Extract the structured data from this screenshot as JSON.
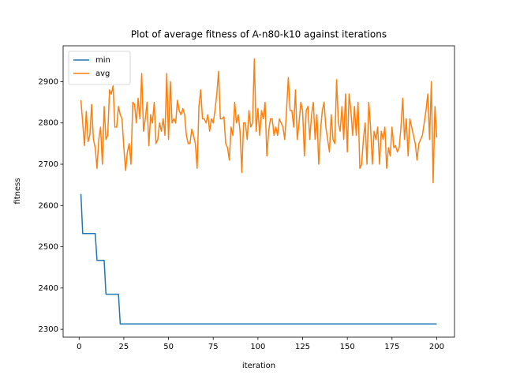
{
  "chart_data": {
    "type": "line",
    "title": "Plot of average fitness of A-n80-k10 against iterations",
    "xlabel": "iteration",
    "ylabel": "fitness",
    "x": [
      1,
      2,
      3,
      4,
      5,
      6,
      7,
      8,
      9,
      10,
      11,
      12,
      13,
      14,
      15,
      16,
      17,
      18,
      19,
      20,
      21,
      22,
      23,
      24,
      25,
      26,
      27,
      28,
      29,
      30,
      31,
      32,
      33,
      34,
      35,
      36,
      37,
      38,
      39,
      40,
      41,
      42,
      43,
      44,
      45,
      46,
      47,
      48,
      49,
      50,
      51,
      52,
      53,
      54,
      55,
      56,
      57,
      58,
      59,
      60,
      61,
      62,
      63,
      64,
      65,
      66,
      67,
      68,
      69,
      70,
      71,
      72,
      73,
      74,
      75,
      76,
      77,
      78,
      79,
      80,
      81,
      82,
      83,
      84,
      85,
      86,
      87,
      88,
      89,
      90,
      91,
      92,
      93,
      94,
      95,
      96,
      97,
      98,
      99,
      100,
      101,
      102,
      103,
      104,
      105,
      106,
      107,
      108,
      109,
      110,
      111,
      112,
      113,
      114,
      115,
      116,
      117,
      118,
      119,
      120,
      121,
      122,
      123,
      124,
      125,
      126,
      127,
      128,
      129,
      130,
      131,
      132,
      133,
      134,
      135,
      136,
      137,
      138,
      139,
      140,
      141,
      142,
      143,
      144,
      145,
      146,
      147,
      148,
      149,
      150,
      151,
      152,
      153,
      154,
      155,
      156,
      157,
      158,
      159,
      160,
      161,
      162,
      163,
      164,
      165,
      166,
      167,
      168,
      169,
      170,
      171,
      172,
      173,
      174,
      175,
      176,
      177,
      178,
      179,
      180,
      181,
      182,
      183,
      184,
      185,
      186,
      187,
      188,
      189,
      190,
      191,
      192,
      193,
      194,
      195,
      196,
      197,
      198,
      199,
      200
    ],
    "series": [
      {
        "name": "min",
        "color": "#1f77b4",
        "values": [
          2628,
          2532,
          2532,
          2532,
          2532,
          2532,
          2532,
          2532,
          2532,
          2467,
          2467,
          2467,
          2467,
          2467,
          2385,
          2385,
          2385,
          2385,
          2385,
          2385,
          2385,
          2385,
          2313,
          2313,
          2313,
          2313,
          2313,
          2313,
          2313,
          2313,
          2313,
          2313,
          2313,
          2313,
          2313,
          2313,
          2313,
          2313,
          2313,
          2313,
          2313,
          2313,
          2313,
          2313,
          2313,
          2313,
          2313,
          2313,
          2313,
          2313,
          2313,
          2313,
          2313,
          2313,
          2313,
          2313,
          2313,
          2313,
          2313,
          2313,
          2313,
          2313,
          2313,
          2313,
          2313,
          2313,
          2313,
          2313,
          2313,
          2313,
          2313,
          2313,
          2313,
          2313,
          2313,
          2313,
          2313,
          2313,
          2313,
          2313,
          2313,
          2313,
          2313,
          2313,
          2313,
          2313,
          2313,
          2313,
          2313,
          2313,
          2313,
          2313,
          2313,
          2313,
          2313,
          2313,
          2313,
          2313,
          2313,
          2313,
          2313,
          2313,
          2313,
          2313,
          2313,
          2313,
          2313,
          2313,
          2313,
          2313,
          2313,
          2313,
          2313,
          2313,
          2313,
          2313,
          2313,
          2313,
          2313,
          2313,
          2313,
          2313,
          2313,
          2313,
          2313,
          2313,
          2313,
          2313,
          2313,
          2313,
          2313,
          2313,
          2313,
          2313,
          2313,
          2313,
          2313,
          2313,
          2313,
          2313,
          2313,
          2313,
          2313,
          2313,
          2313,
          2313,
          2313,
          2313,
          2313,
          2313,
          2313,
          2313,
          2313,
          2313,
          2313,
          2313,
          2313,
          2313,
          2313,
          2313,
          2313,
          2313,
          2313,
          2313,
          2313,
          2313,
          2313,
          2313,
          2313,
          2313,
          2313,
          2313,
          2313,
          2313,
          2313,
          2313,
          2313,
          2313,
          2313,
          2313,
          2313,
          2313,
          2313,
          2313,
          2313,
          2313,
          2313,
          2313,
          2313,
          2313,
          2313,
          2313,
          2313,
          2313,
          2313,
          2313,
          2313,
          2313,
          2313,
          2313
        ]
      },
      {
        "name": "avg",
        "color": "#ff7f0e",
        "values": [
          2855,
          2800,
          2745,
          2828,
          2755,
          2770,
          2845,
          2760,
          2740,
          2690,
          2760,
          2790,
          2700,
          2840,
          2760,
          2770,
          2880,
          2870,
          2890,
          2790,
          2790,
          2840,
          2820,
          2810,
          2740,
          2685,
          2730,
          2750,
          2700,
          2850,
          2845,
          2800,
          2860,
          2810,
          2920,
          2780,
          2810,
          2850,
          2745,
          2820,
          2800,
          2850,
          2750,
          2760,
          2800,
          2780,
          2810,
          2770,
          2920,
          2760,
          2900,
          2800,
          2810,
          2800,
          2855,
          2830,
          2820,
          2835,
          2820,
          2770,
          2750,
          2750,
          2785,
          2770,
          2750,
          2690,
          2840,
          2880,
          2810,
          2810,
          2800,
          2820,
          2780,
          2810,
          2800,
          2830,
          2870,
          2925,
          2810,
          2810,
          2815,
          2750,
          2740,
          2710,
          2790,
          2770,
          2850,
          2800,
          2820,
          2780,
          2680,
          2800,
          2800,
          2760,
          2830,
          2790,
          2800,
          2955,
          2780,
          2835,
          2770,
          2830,
          2810,
          2850,
          2720,
          2780,
          2810,
          2810,
          2770,
          2790,
          2770,
          2810,
          2800,
          2790,
          2760,
          2830,
          2910,
          2830,
          2830,
          2790,
          2880,
          2760,
          2800,
          2850,
          2830,
          2720,
          2830,
          2840,
          2760,
          2820,
          2850,
          2760,
          2820,
          2700,
          2780,
          2830,
          2850,
          2790,
          2760,
          2730,
          2820,
          2760,
          2750,
          2905,
          2800,
          2780,
          2840,
          2760,
          2870,
          2730,
          2870,
          2830,
          2770,
          2840,
          2770,
          2850,
          2690,
          2700,
          2760,
          2800,
          2700,
          2850,
          2790,
          2700,
          2780,
          2760,
          2790,
          2700,
          2780,
          2760,
          2790,
          2690,
          2740,
          2720,
          2790,
          2740,
          2745,
          2730,
          2740,
          2790,
          2860,
          2760,
          2810,
          2720,
          2810,
          2790,
          2770,
          2750,
          2710,
          2750,
          2760,
          2770,
          2800,
          2830,
          2870,
          2760,
          2900,
          2655,
          2840,
          2765
        ]
      }
    ],
    "xlim": [
      -8.95,
      209.95
    ],
    "ylim": [
      2281,
      2987
    ],
    "xticks": [
      0,
      25,
      50,
      75,
      100,
      125,
      150,
      175,
      200
    ],
    "yticks": [
      2300,
      2400,
      2500,
      2600,
      2700,
      2800,
      2900
    ],
    "legend": "upper left",
    "grid": false
  }
}
